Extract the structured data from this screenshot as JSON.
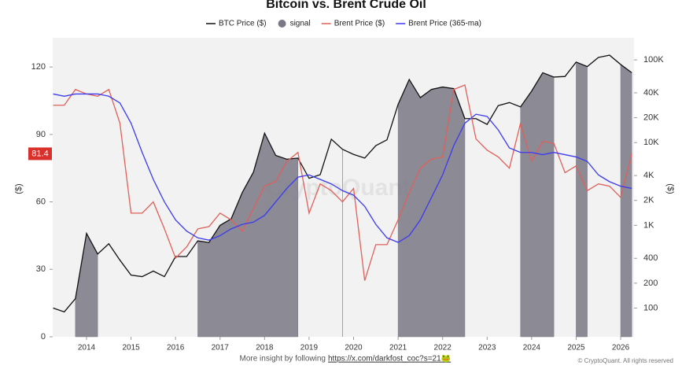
{
  "chart_data": {
    "type": "line",
    "title": "Bitcoin vs. Brent Crude Oil",
    "ylabel": "($)",
    "y2label": "($)",
    "watermark": "CryptoQuant",
    "footer_text": "More insight by following",
    "footer_link": "https://x.com/darkfost_coc?s=21🐸",
    "copyright": "© CryptoQuant. All rights reserved",
    "annotations": [
      {
        "label": "81.4",
        "value": 81.4,
        "color": "#d9302c"
      }
    ],
    "xlim": [
      2013.24,
      2026.3
    ],
    "xticks": [
      2014,
      2015,
      2016,
      2017,
      2018,
      2019,
      2020,
      2021,
      2022,
      2023,
      2024,
      2025,
      2026
    ],
    "ylim": [
      0,
      133
    ],
    "yticks": [
      0,
      30,
      60,
      90,
      120
    ],
    "y2lim": [
      45,
      185000
    ],
    "y2log": true,
    "y2ticks": [
      100,
      200,
      400,
      {
        "value": 1000,
        "label": "1K"
      },
      {
        "value": 2000,
        "label": "2K"
      },
      {
        "value": 4000,
        "label": "4K"
      },
      {
        "value": 10000,
        "label": "10K"
      },
      {
        "value": 20000,
        "label": "20K"
      },
      {
        "value": 40000,
        "label": "40K"
      },
      {
        "value": 100000,
        "label": "100K"
      }
    ],
    "x": [
      2013.25,
      2013.5,
      2013.75,
      2014,
      2014.25,
      2014.5,
      2014.75,
      2015,
      2015.25,
      2015.5,
      2015.75,
      2016,
      2016.25,
      2016.5,
      2016.75,
      2017,
      2017.25,
      2017.5,
      2017.75,
      2018,
      2018.25,
      2018.5,
      2018.75,
      2019,
      2019.25,
      2019.5,
      2019.75,
      2020,
      2020.25,
      2020.5,
      2020.75,
      2021,
      2021.25,
      2021.5,
      2021.75,
      2022,
      2022.25,
      2022.5,
      2022.75,
      2023,
      2023.25,
      2023.5,
      2023.75,
      2024,
      2024.25,
      2024.5,
      2024.75,
      2025,
      2025.25,
      2025.5,
      2025.75,
      2026,
      2026.25
    ],
    "series": [
      {
        "name": "signal",
        "kind": "area",
        "axis": "y2",
        "color": "#7a7885",
        "values": [
          null,
          null,
          130,
          800,
          450,
          null,
          null,
          null,
          null,
          null,
          null,
          null,
          null,
          650,
          620,
          1000,
          1200,
          2500,
          4400,
          13000,
          7000,
          6300,
          6500,
          null,
          null,
          null,
          8300,
          null,
          null,
          null,
          null,
          29000,
          58000,
          35000,
          44000,
          47000,
          45000,
          19500,
          null,
          null,
          null,
          null,
          27000,
          42000,
          70000,
          62000,
          null,
          94000,
          83000,
          null,
          null,
          88000,
          70000
        ]
      },
      {
        "name": "BTC Price ($)",
        "kind": "line",
        "axis": "y2",
        "color": "#111111",
        "values": [
          100,
          90,
          130,
          800,
          450,
          600,
          380,
          250,
          240,
          280,
          240,
          420,
          420,
          650,
          620,
          1000,
          1200,
          2500,
          4400,
          13000,
          7000,
          6300,
          6500,
          3700,
          4100,
          11000,
          8300,
          7200,
          6500,
          9200,
          10800,
          29000,
          58000,
          35000,
          44000,
          47000,
          45000,
          19500,
          19500,
          16600,
          28000,
          30500,
          27000,
          42000,
          70000,
          62000,
          63000,
          94000,
          83000,
          107000,
          114000,
          88000,
          70000
        ]
      },
      {
        "name": "Brent Price ($)",
        "kind": "line",
        "axis": "y",
        "color": "#e0605a",
        "values": [
          103,
          103,
          110,
          108,
          107,
          110,
          95,
          55,
          55,
          60,
          48,
          35,
          40,
          48,
          49,
          55,
          52,
          47,
          57,
          67,
          69,
          78,
          82,
          55,
          68,
          65,
          60,
          66,
          25,
          41,
          41,
          52,
          64,
          75,
          79,
          80,
          110,
          112,
          88,
          83,
          80,
          75,
          95,
          78,
          87,
          86,
          73,
          76,
          65,
          68,
          67,
          62,
          81.4
        ]
      },
      {
        "name": "Brent Price (365-ma)",
        "kind": "line",
        "axis": "y",
        "color": "#3b3bf0",
        "values": [
          108,
          107,
          108,
          108,
          108,
          107,
          104,
          95,
          82,
          70,
          60,
          52,
          47,
          44,
          43,
          45,
          48,
          50,
          51,
          54,
          60,
          66,
          71,
          72,
          70,
          68,
          65,
          63,
          58,
          50,
          44,
          42,
          45,
          52,
          62,
          72,
          85,
          95,
          99,
          98,
          92,
          84,
          82,
          82,
          81,
          82,
          81,
          80,
          78,
          72,
          69,
          67,
          66
        ]
      }
    ],
    "legend_order": [
      1,
      0,
      2,
      3
    ]
  }
}
